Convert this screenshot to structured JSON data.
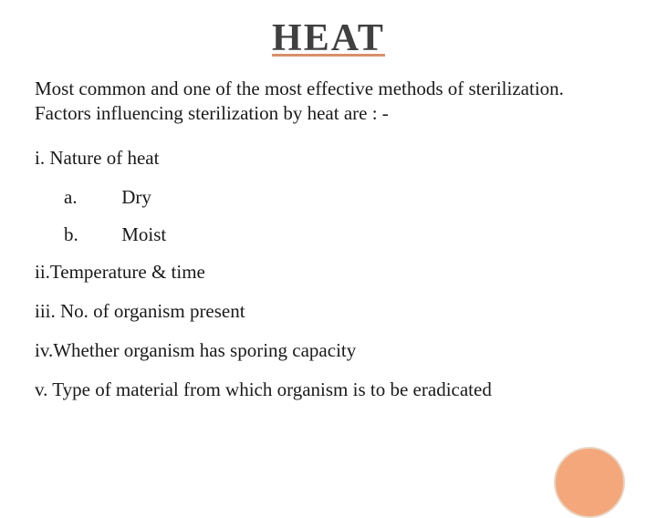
{
  "title": "HEAT",
  "intro_line1": "Most common and one of the most effective methods of sterilization.",
  "intro_line2": "Factors influencing sterilization by heat are : -",
  "factors": {
    "i": "i. Nature of heat",
    "i_a_label": "a.",
    "i_a_value": "Dry",
    "i_b_label": "b.",
    "i_b_value": "Moist",
    "ii": "ii.Temperature & time",
    "iii": "iii. No. of organism present",
    "iv": "iv.Whether organism has sporing capacity",
    "v": "v. Type of material from which organism is to be eradicated"
  },
  "colors": {
    "title_text": "#404040",
    "title_underline": "#d98f6a",
    "body_text": "#1a1a1a",
    "background": "#ffffff",
    "circle_fill": "#f4a77a",
    "circle_border": "#e8d5c4"
  },
  "typography": {
    "title_fontsize": 42,
    "body_fontsize": 21,
    "font_family": "Georgia, Times New Roman, serif"
  }
}
